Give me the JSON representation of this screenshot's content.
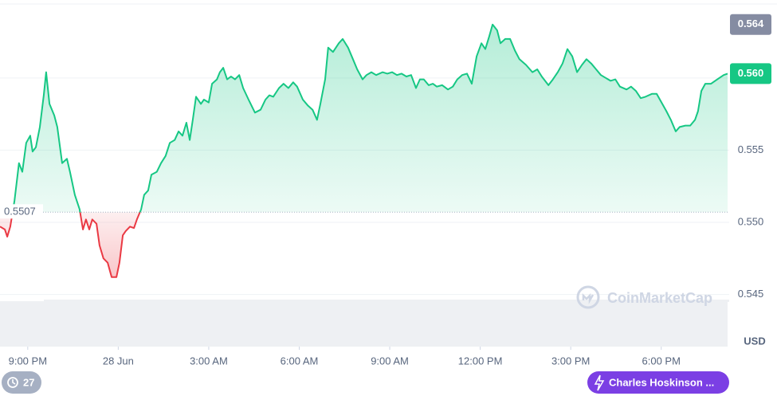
{
  "chart_data": {
    "type": "line",
    "x": [
      20.08,
      20.24,
      20.32,
      20.42,
      20.56,
      20.71,
      20.82,
      20.95,
      21.08,
      21.16,
      21.27,
      21.4,
      21.53,
      21.61,
      21.72,
      21.88,
      21.98,
      22.14,
      22.3,
      22.4,
      22.56,
      22.72,
      22.83,
      22.93,
      23.04,
      23.14,
      23.28,
      23.38,
      23.51,
      23.65,
      23.78,
      23.94,
      24.04,
      24.15,
      24.25,
      24.39,
      24.52,
      24.62,
      24.76,
      24.86,
      24.99,
      25.1,
      25.28,
      25.42,
      25.57,
      25.71,
      25.87,
      26.0,
      26.13,
      26.26,
      26.37,
      26.47,
      26.58,
      26.74,
      26.84,
      27.0,
      27.11,
      27.27,
      27.37,
      27.48,
      27.61,
      27.74,
      27.87,
      28.01,
      28.14,
      28.32,
      28.53,
      28.72,
      28.88,
      29.01,
      29.14,
      29.33,
      29.48,
      29.64,
      29.8,
      29.93,
      30.12,
      30.28,
      30.44,
      30.59,
      30.7,
      30.86,
      30.96,
      31.12,
      31.31,
      31.44,
      31.62,
      31.78,
      31.92,
      32.1,
      32.23,
      32.39,
      32.55,
      32.76,
      32.92,
      33.08,
      33.24,
      33.39,
      33.55,
      33.71,
      33.87,
      34.0,
      34.13,
      34.29,
      34.43,
      34.56,
      34.74,
      34.93,
      35.09,
      35.24,
      35.4,
      35.56,
      35.72,
      35.88,
      36.04,
      36.17,
      36.3,
      36.41,
      36.56,
      36.67,
      36.83,
      36.99,
      37.15,
      37.3,
      37.52,
      37.73,
      37.89,
      38.04,
      38.26,
      38.41,
      38.57,
      38.73,
      38.89,
      39.05,
      39.21,
      39.37,
      39.52,
      39.68,
      39.84,
      40.0,
      40.16,
      40.32,
      40.48,
      40.63,
      40.85,
      41.0,
      41.16,
      41.32,
      41.48,
      41.69,
      41.85,
      42.01,
      42.17,
      42.32,
      42.48,
      42.61,
      42.8,
      42.96,
      43.12,
      43.22,
      43.33,
      43.46,
      43.65,
      43.86,
      44.07,
      44.2
    ],
    "values": [
      0.5497,
      0.5495,
      0.549,
      0.5497,
      0.5515,
      0.5541,
      0.5535,
      0.5555,
      0.556,
      0.5549,
      0.5552,
      0.5566,
      0.5588,
      0.5604,
      0.5582,
      0.5574,
      0.5566,
      0.5541,
      0.5544,
      0.5535,
      0.5519,
      0.5509,
      0.5495,
      0.5502,
      0.5495,
      0.5502,
      0.5499,
      0.5484,
      0.5475,
      0.5472,
      0.5462,
      0.5462,
      0.5472,
      0.5491,
      0.5494,
      0.5497,
      0.5496,
      0.5502,
      0.5509,
      0.5519,
      0.5522,
      0.5533,
      0.5535,
      0.5541,
      0.5546,
      0.5555,
      0.5557,
      0.5563,
      0.556,
      0.5569,
      0.5557,
      0.5571,
      0.5587,
      0.5582,
      0.5585,
      0.5583,
      0.5596,
      0.5599,
      0.5604,
      0.5607,
      0.5599,
      0.5601,
      0.5599,
      0.5602,
      0.5593,
      0.5585,
      0.5576,
      0.5578,
      0.5585,
      0.5588,
      0.5587,
      0.5593,
      0.5596,
      0.5593,
      0.5597,
      0.5594,
      0.5585,
      0.5581,
      0.5578,
      0.5571,
      0.5582,
      0.5599,
      0.5621,
      0.5618,
      0.5624,
      0.5627,
      0.5621,
      0.5613,
      0.5606,
      0.5599,
      0.5602,
      0.5604,
      0.5602,
      0.5604,
      0.5603,
      0.5604,
      0.5602,
      0.5603,
      0.5601,
      0.5602,
      0.5593,
      0.5599,
      0.5599,
      0.5595,
      0.5596,
      0.5594,
      0.5595,
      0.5592,
      0.5594,
      0.5599,
      0.5602,
      0.5603,
      0.5596,
      0.5615,
      0.5624,
      0.562,
      0.5629,
      0.5637,
      0.5633,
      0.5624,
      0.5627,
      0.5627,
      0.5619,
      0.5613,
      0.5609,
      0.5604,
      0.5606,
      0.5601,
      0.5595,
      0.5599,
      0.5604,
      0.561,
      0.562,
      0.5615,
      0.5604,
      0.5609,
      0.5613,
      0.561,
      0.5606,
      0.5602,
      0.56,
      0.5598,
      0.5599,
      0.5594,
      0.5592,
      0.5594,
      0.5591,
      0.5586,
      0.5587,
      0.5589,
      0.5589,
      0.5583,
      0.5577,
      0.5571,
      0.5563,
      0.5566,
      0.5567,
      0.5567,
      0.5571,
      0.5577,
      0.5591,
      0.5596,
      0.5596,
      0.5599,
      0.5602,
      0.5603
    ],
    "up_color": "#16c784",
    "down_color": "#ea3943",
    "baseline": 0.5507,
    "high": {
      "value": 0.5637,
      "label": "0.564"
    },
    "last_label": "0.560",
    "xlim": [
      20.08,
      44.2
    ],
    "xticks": [
      {
        "value": 21,
        "label": "9:00 PM"
      },
      {
        "value": 24,
        "label": "28 Jun"
      },
      {
        "value": 27,
        "label": "3:00 AM"
      },
      {
        "value": 30,
        "label": "6:00 AM"
      },
      {
        "value": 33,
        "label": "9:00 AM"
      },
      {
        "value": 36,
        "label": "12:00 PM"
      },
      {
        "value": 39,
        "label": "3:00 PM"
      },
      {
        "value": 42,
        "label": "6:00 PM"
      }
    ],
    "ylim": [
      0.5447,
      0.5654
    ],
    "yticks": [
      0.545,
      {
        "value": 0.55,
        "label": "0.550"
      },
      0.555,
      {
        "value": 0.56,
        "label": "0.560"
      }
    ],
    "grid": true,
    "currency": "USD",
    "watermark": "CoinMarketCap",
    "history_count": "27",
    "news_badge": "Charles Hoskinson ..."
  }
}
